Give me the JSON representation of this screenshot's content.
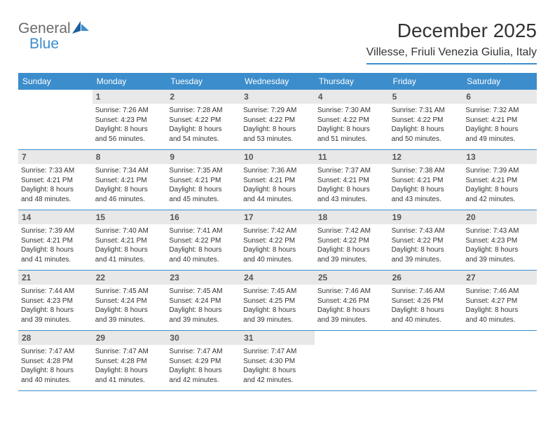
{
  "logo": {
    "text1": "General",
    "text2": "Blue"
  },
  "title": "December 2025",
  "location": "Villesse, Friuli Venezia Giulia, Italy",
  "colors": {
    "accent": "#3c8dcc",
    "header_bg": "#3c8dcc",
    "daynum_bg": "#e8e8e8",
    "text": "#333333",
    "logo_gray": "#6a6a6a"
  },
  "dayNames": [
    "Sunday",
    "Monday",
    "Tuesday",
    "Wednesday",
    "Thursday",
    "Friday",
    "Saturday"
  ],
  "weeks": [
    [
      {
        "n": "",
        "lines": []
      },
      {
        "n": "1",
        "lines": [
          "Sunrise: 7:26 AM",
          "Sunset: 4:23 PM",
          "Daylight: 8 hours",
          "and 56 minutes."
        ]
      },
      {
        "n": "2",
        "lines": [
          "Sunrise: 7:28 AM",
          "Sunset: 4:22 PM",
          "Daylight: 8 hours",
          "and 54 minutes."
        ]
      },
      {
        "n": "3",
        "lines": [
          "Sunrise: 7:29 AM",
          "Sunset: 4:22 PM",
          "Daylight: 8 hours",
          "and 53 minutes."
        ]
      },
      {
        "n": "4",
        "lines": [
          "Sunrise: 7:30 AM",
          "Sunset: 4:22 PM",
          "Daylight: 8 hours",
          "and 51 minutes."
        ]
      },
      {
        "n": "5",
        "lines": [
          "Sunrise: 7:31 AM",
          "Sunset: 4:22 PM",
          "Daylight: 8 hours",
          "and 50 minutes."
        ]
      },
      {
        "n": "6",
        "lines": [
          "Sunrise: 7:32 AM",
          "Sunset: 4:21 PM",
          "Daylight: 8 hours",
          "and 49 minutes."
        ]
      }
    ],
    [
      {
        "n": "7",
        "lines": [
          "Sunrise: 7:33 AM",
          "Sunset: 4:21 PM",
          "Daylight: 8 hours",
          "and 48 minutes."
        ]
      },
      {
        "n": "8",
        "lines": [
          "Sunrise: 7:34 AM",
          "Sunset: 4:21 PM",
          "Daylight: 8 hours",
          "and 46 minutes."
        ]
      },
      {
        "n": "9",
        "lines": [
          "Sunrise: 7:35 AM",
          "Sunset: 4:21 PM",
          "Daylight: 8 hours",
          "and 45 minutes."
        ]
      },
      {
        "n": "10",
        "lines": [
          "Sunrise: 7:36 AM",
          "Sunset: 4:21 PM",
          "Daylight: 8 hours",
          "and 44 minutes."
        ]
      },
      {
        "n": "11",
        "lines": [
          "Sunrise: 7:37 AM",
          "Sunset: 4:21 PM",
          "Daylight: 8 hours",
          "and 43 minutes."
        ]
      },
      {
        "n": "12",
        "lines": [
          "Sunrise: 7:38 AM",
          "Sunset: 4:21 PM",
          "Daylight: 8 hours",
          "and 43 minutes."
        ]
      },
      {
        "n": "13",
        "lines": [
          "Sunrise: 7:39 AM",
          "Sunset: 4:21 PM",
          "Daylight: 8 hours",
          "and 42 minutes."
        ]
      }
    ],
    [
      {
        "n": "14",
        "lines": [
          "Sunrise: 7:39 AM",
          "Sunset: 4:21 PM",
          "Daylight: 8 hours",
          "and 41 minutes."
        ]
      },
      {
        "n": "15",
        "lines": [
          "Sunrise: 7:40 AM",
          "Sunset: 4:21 PM",
          "Daylight: 8 hours",
          "and 41 minutes."
        ]
      },
      {
        "n": "16",
        "lines": [
          "Sunrise: 7:41 AM",
          "Sunset: 4:22 PM",
          "Daylight: 8 hours",
          "and 40 minutes."
        ]
      },
      {
        "n": "17",
        "lines": [
          "Sunrise: 7:42 AM",
          "Sunset: 4:22 PM",
          "Daylight: 8 hours",
          "and 40 minutes."
        ]
      },
      {
        "n": "18",
        "lines": [
          "Sunrise: 7:42 AM",
          "Sunset: 4:22 PM",
          "Daylight: 8 hours",
          "and 39 minutes."
        ]
      },
      {
        "n": "19",
        "lines": [
          "Sunrise: 7:43 AM",
          "Sunset: 4:22 PM",
          "Daylight: 8 hours",
          "and 39 minutes."
        ]
      },
      {
        "n": "20",
        "lines": [
          "Sunrise: 7:43 AM",
          "Sunset: 4:23 PM",
          "Daylight: 8 hours",
          "and 39 minutes."
        ]
      }
    ],
    [
      {
        "n": "21",
        "lines": [
          "Sunrise: 7:44 AM",
          "Sunset: 4:23 PM",
          "Daylight: 8 hours",
          "and 39 minutes."
        ]
      },
      {
        "n": "22",
        "lines": [
          "Sunrise: 7:45 AM",
          "Sunset: 4:24 PM",
          "Daylight: 8 hours",
          "and 39 minutes."
        ]
      },
      {
        "n": "23",
        "lines": [
          "Sunrise: 7:45 AM",
          "Sunset: 4:24 PM",
          "Daylight: 8 hours",
          "and 39 minutes."
        ]
      },
      {
        "n": "24",
        "lines": [
          "Sunrise: 7:45 AM",
          "Sunset: 4:25 PM",
          "Daylight: 8 hours",
          "and 39 minutes."
        ]
      },
      {
        "n": "25",
        "lines": [
          "Sunrise: 7:46 AM",
          "Sunset: 4:26 PM",
          "Daylight: 8 hours",
          "and 39 minutes."
        ]
      },
      {
        "n": "26",
        "lines": [
          "Sunrise: 7:46 AM",
          "Sunset: 4:26 PM",
          "Daylight: 8 hours",
          "and 40 minutes."
        ]
      },
      {
        "n": "27",
        "lines": [
          "Sunrise: 7:46 AM",
          "Sunset: 4:27 PM",
          "Daylight: 8 hours",
          "and 40 minutes."
        ]
      }
    ],
    [
      {
        "n": "28",
        "lines": [
          "Sunrise: 7:47 AM",
          "Sunset: 4:28 PM",
          "Daylight: 8 hours",
          "and 40 minutes."
        ]
      },
      {
        "n": "29",
        "lines": [
          "Sunrise: 7:47 AM",
          "Sunset: 4:28 PM",
          "Daylight: 8 hours",
          "and 41 minutes."
        ]
      },
      {
        "n": "30",
        "lines": [
          "Sunrise: 7:47 AM",
          "Sunset: 4:29 PM",
          "Daylight: 8 hours",
          "and 42 minutes."
        ]
      },
      {
        "n": "31",
        "lines": [
          "Sunrise: 7:47 AM",
          "Sunset: 4:30 PM",
          "Daylight: 8 hours",
          "and 42 minutes."
        ]
      },
      {
        "n": "",
        "lines": []
      },
      {
        "n": "",
        "lines": []
      },
      {
        "n": "",
        "lines": []
      }
    ]
  ]
}
